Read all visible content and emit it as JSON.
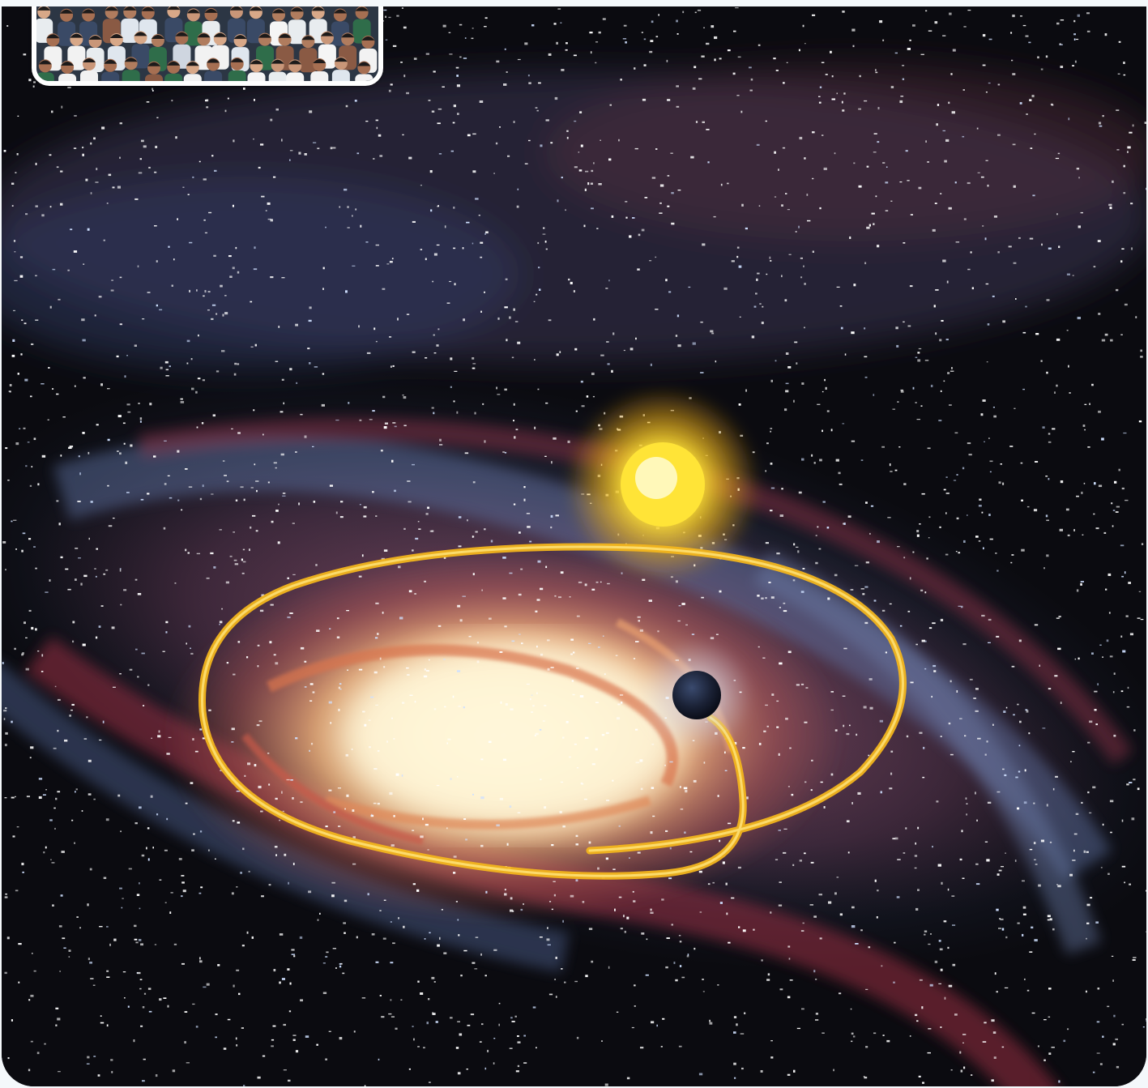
{
  "figure": {
    "scene": "galaxy-orbit-illustration",
    "elements": [
      "spiral-galaxy",
      "sun",
      "dark-planet",
      "orbit-path",
      "starfield",
      "crowd-photo-inset"
    ],
    "colors": {
      "space": "#0b0b10",
      "orbit": "#f2b51c",
      "sun": "#ffe437",
      "galaxy_core": "#fff6d8",
      "galaxy_arm_blue": "#5e6f9c",
      "galaxy_arm_red": "#b3374a",
      "planet": "#1b2236",
      "frame_border": "#ffffff"
    }
  }
}
